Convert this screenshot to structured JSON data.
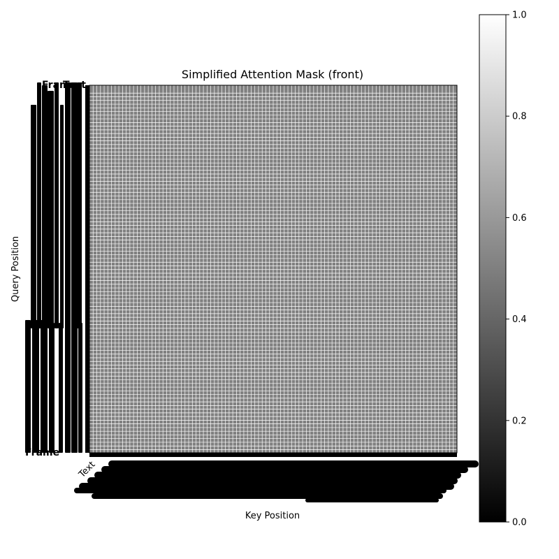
{
  "chart_data": {
    "type": "heatmap",
    "title": "Simplified Attention Mask (front)",
    "xlabel": "Key Position",
    "ylabel": "Query Position",
    "colormap": "gray",
    "colorbar": {
      "range": [
        0,
        1
      ],
      "ticks": [
        "0.0",
        "0.2",
        "0.4",
        "0.6",
        "0.8",
        "1.0"
      ]
    },
    "grid": true,
    "grid_color": "#ffffff",
    "cell_fill_color": "#808080",
    "frame_color": "#000000",
    "size": 100,
    "matrix_value": 0.5,
    "tick_labels_visible": [
      "Text",
      "Frame",
      "Frame",
      "Text"
    ]
  }
}
